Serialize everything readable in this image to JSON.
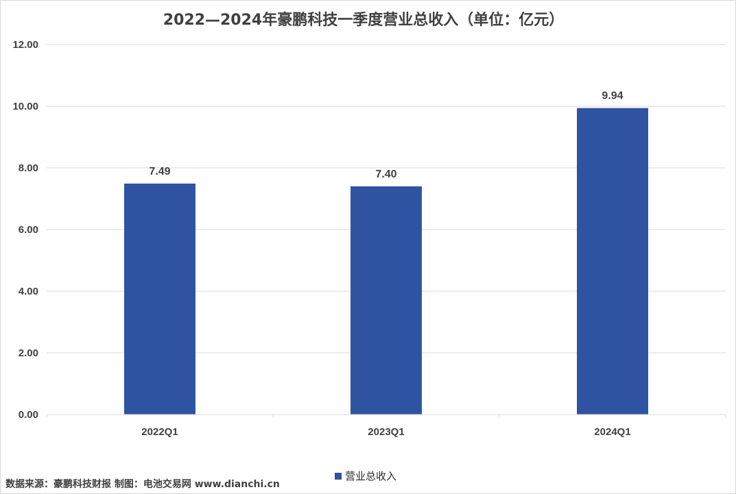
{
  "chart_data": {
    "type": "bar",
    "title": "2022—2024年豪鹏科技一季度营业总收入（单位：亿元）",
    "categories": [
      "2022Q1",
      "2023Q1",
      "2024Q1"
    ],
    "series": [
      {
        "name": "营业总收入",
        "values": [
          7.49,
          7.4,
          9.94
        ],
        "color": "#2e54a1"
      }
    ],
    "data_labels": [
      "7.49",
      "7.40",
      "9.94"
    ],
    "y_ticks": [
      "0.00",
      "2.00",
      "4.00",
      "6.00",
      "8.00",
      "10.00",
      "12.00"
    ],
    "ylim": [
      0,
      12
    ],
    "grid": true,
    "legend_position": "bottom",
    "source_note": "数据来源：豪鹏科技财报  制图：电池交易网 www.dianchi.cn"
  }
}
